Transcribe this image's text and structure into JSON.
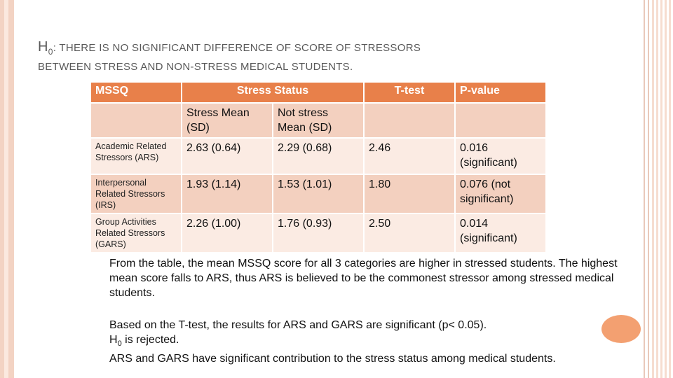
{
  "title": {
    "h0": "H",
    "h0_sub": "0",
    "line1_rest": ": There is no significant difference of score of stressors",
    "line2": "between stress and non-stress medical students."
  },
  "table": {
    "headers": {
      "mssq": "MSSQ",
      "stress_status": "Stress Status",
      "ttest": "T-test",
      "pvalue": "P-value"
    },
    "subheaders": {
      "stress": "Stress Mean (SD)",
      "not_stress": "Not stress Mean (SD)"
    },
    "rows": [
      {
        "label": "Academic Related Stressors (ARS)",
        "stress": "2.63 (0.64)",
        "not_stress": "2.29 (0.68)",
        "ttest": "2.46",
        "pvalue": "0.016 (significant)"
      },
      {
        "label": "Interpersonal Related Stressors (IRS)",
        "stress": "1.93 (1.14)",
        "not_stress": "1.53 (1.01)",
        "ttest": "1.80",
        "pvalue": "0.076 (not significant)"
      },
      {
        "label": "Group Activities Related Stressors (GARS)",
        "stress": "2.26 (1.00)",
        "not_stress": "1.76 (0.93)",
        "ttest": "2.50",
        "pvalue": "0.014 (significant)"
      }
    ]
  },
  "paragraph1": "From the table, the mean MSSQ score for all 3 categories are higher in stressed students. The highest mean score falls to ARS, thus ARS is believed to be the commonest stressor among stressed medical students.",
  "paragraph2": {
    "line1": "Based on the T-test, the results for ARS and GARS are significant (p< 0.05).",
    "line2_h": "H",
    "line2_sub": "0",
    "line2_rest": " is rejected.",
    "line3": "ARS and GARS have significant contribution to the stress status among medical students."
  },
  "colors": {
    "header_bg": "#e8804a",
    "row_dark": "#f3d0bf",
    "row_light": "#fbebe3",
    "accent_circle": "#f3a071"
  }
}
